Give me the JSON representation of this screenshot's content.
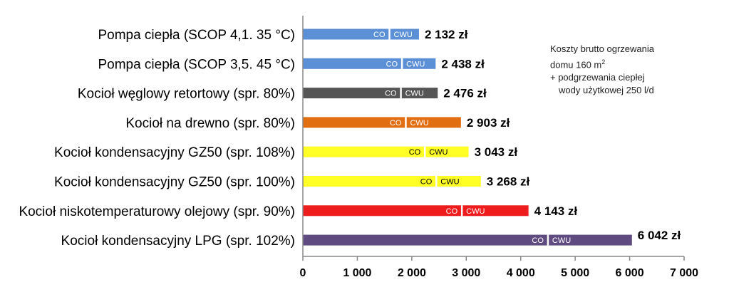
{
  "chart_data": {
    "type": "bar",
    "orientation": "horizontal",
    "categories": [
      "Pompa ciepła (SCOP 4,1. 35 °C)",
      "Pompa ciepła (SCOP 3,5. 45 °C)",
      "Kocioł węglowy retortowy (spr. 80%)",
      "Kocioł na drewno (spr. 80%)",
      "Kocioł kondensacyjny GZ50  (spr. 108%)",
      "Kocioł kondensacyjny GZ50  (spr. 100%)",
      "Kocioł niskotemperaturowy olejowy (spr. 90%)",
      "Kocioł kondensacyjny LPG (spr. 102%)"
    ],
    "values": [
      2132,
      2438,
      2476,
      2903,
      3043,
      3268,
      4143,
      6042
    ],
    "value_labels": [
      "2 132 zł",
      "2 438 zł",
      "2 476 zł",
      "2 903 zł",
      "3 043 zł",
      "3 268 zł",
      "4 143 zł",
      "6 042 zł"
    ],
    "co_values": [
      1590,
      1820,
      1800,
      1890,
      2240,
      2450,
      2920,
      4500
    ],
    "segment_labels": [
      "CO",
      "CWU"
    ],
    "colors": [
      "#5b8fd6",
      "#5b8fd6",
      "#555555",
      "#e26e12",
      "#ffff26",
      "#ffff26",
      "#ee1c1c",
      "#5f4b80"
    ],
    "xlim": [
      0,
      7000
    ],
    "ticks": [
      0,
      1000,
      2000,
      3000,
      4000,
      5000,
      6000,
      7000
    ],
    "tick_labels": [
      "0",
      "1 000",
      "2 000",
      "3 000",
      "4 000",
      "5 000",
      "6 000",
      "7 000"
    ],
    "grid": false
  },
  "note": {
    "line1": "Koszty brutto ogrzewania",
    "line2_text": "domu 160 m",
    "line2_sup": "2",
    "line3": "+ podgrzewania ciepłej",
    "line4": "wody użytkowej 250 l/d"
  }
}
